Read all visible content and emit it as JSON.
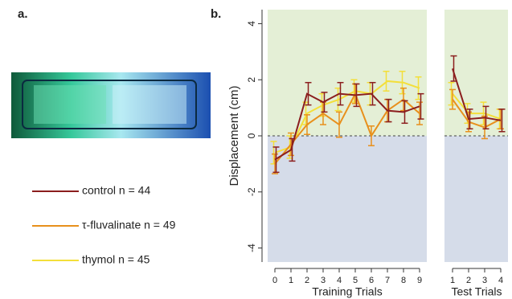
{
  "panel_a_label": "a.",
  "chart_data": {
    "type": "line",
    "panel_label": "b.",
    "ylabel": "Displacement (cm)",
    "ylim": [
      -4.5,
      4.5
    ],
    "yticks": [
      -4,
      -2,
      0,
      2,
      4
    ],
    "panels": [
      {
        "xlabel": "Training Trials",
        "categories": [
          "0",
          "1",
          "2",
          "3",
          "4",
          "5",
          "6",
          "7",
          "8",
          "9"
        ]
      },
      {
        "xlabel": "Test Trials",
        "categories": [
          "1",
          "2",
          "3",
          "4"
        ]
      }
    ],
    "series": [
      {
        "name": "thymol n = 45",
        "color": "#f3df3a",
        "values": [
          [
            -0.6,
            -0.4,
            0.8,
            1.1,
            1.3,
            1.6,
            1.5,
            1.95,
            1.9,
            1.7
          ],
          [
            1.5,
            0.8,
            0.8,
            0.6
          ]
        ],
        "errors": [
          [
            0.4,
            0.4,
            0.4,
            0.4,
            0.4,
            0.4,
            0.4,
            0.35,
            0.4,
            0.4
          ],
          [
            0.4,
            0.35,
            0.4,
            0.35
          ]
        ]
      },
      {
        "name": "τ-fluvalinate n = 49",
        "color": "#e8901c",
        "values": [
          [
            -1.0,
            -0.3,
            0.4,
            0.8,
            0.4,
            1.5,
            0.0,
            0.9,
            1.3,
            0.8
          ],
          [
            1.3,
            0.5,
            0.3,
            0.6
          ]
        ],
        "errors": [
          [
            0.35,
            0.4,
            0.35,
            0.4,
            0.45,
            0.35,
            0.35,
            0.4,
            0.4,
            0.4
          ],
          [
            0.35,
            0.35,
            0.4,
            0.35
          ]
        ]
      },
      {
        "name": "control n = 44",
        "color": "#8b1e1e",
        "values": [
          [
            -0.85,
            -0.5,
            1.5,
            1.2,
            1.5,
            1.45,
            1.5,
            0.9,
            0.85,
            1.05
          ],
          [
            2.4,
            0.6,
            0.65,
            0.55
          ]
        ],
        "errors": [
          [
            0.45,
            0.4,
            0.4,
            0.35,
            0.4,
            0.4,
            0.4,
            0.4,
            0.4,
            0.45
          ],
          [
            0.45,
            0.35,
            0.4,
            0.4
          ]
        ]
      }
    ]
  }
}
